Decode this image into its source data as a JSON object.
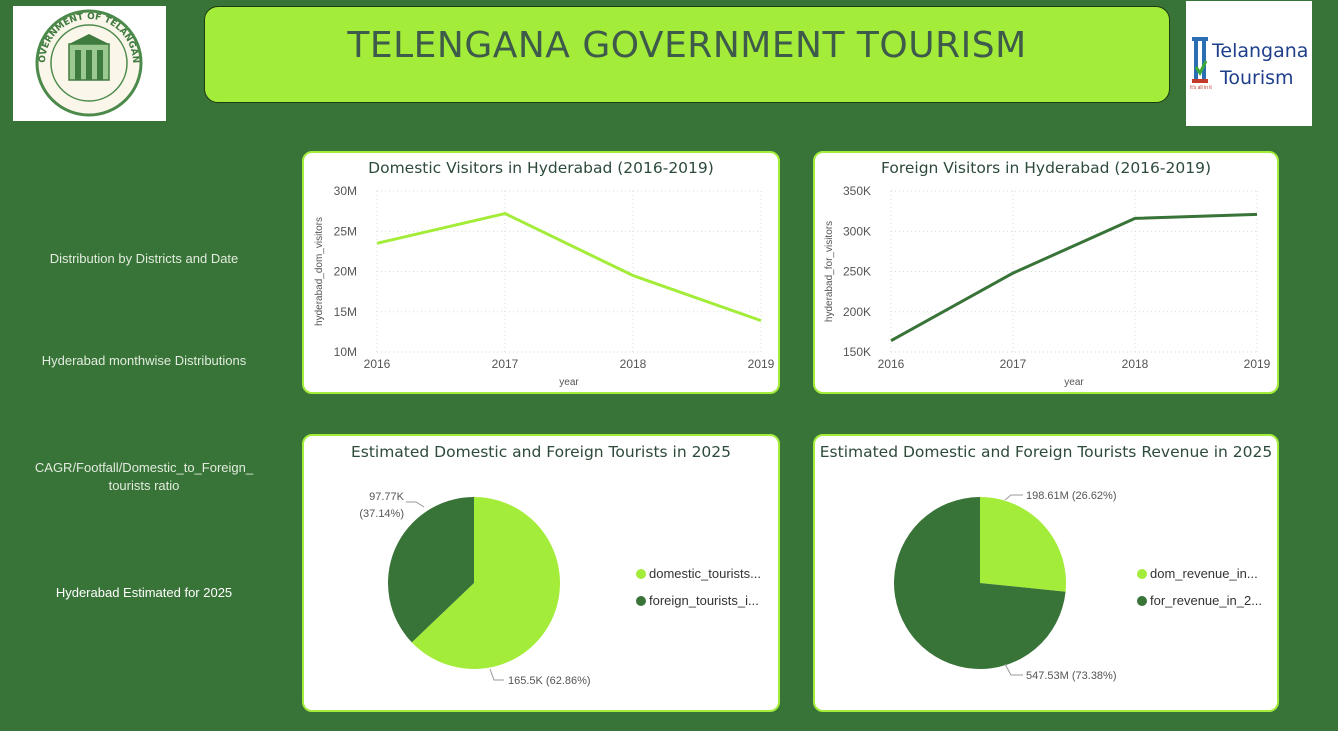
{
  "header": {
    "title": "TELENGANA GOVERNMENT TOURISM",
    "left_logo": {
      "icon": "government-of-telangana-seal",
      "text": "GOVERNMENT OF TELANGANA"
    },
    "right_logo": {
      "icon": "telangana-tourism-logo",
      "line1": "Telangana",
      "line2": "Tourism",
      "tagline": "It's all in it"
    }
  },
  "sidebar": {
    "items": [
      {
        "label": "Distribution by Districts and Date"
      },
      {
        "label": "Hyderabad monthwise Distributions"
      },
      {
        "label": "CAGR/Footfall/Domestic_to_Foreign_ tourists ratio"
      },
      {
        "label": "Hyderabad Estimated for 2025"
      }
    ]
  },
  "colors": {
    "background": "#387338",
    "light_green": "#a4ec3a",
    "dark_green": "#387338",
    "title_text": "#3d5a4a"
  },
  "chart_data": [
    {
      "type": "line",
      "title": "Domestic Visitors in Hyderabad (2016-2019)",
      "xlabel": "year",
      "ylabel": "hyderabad_dom_visitors",
      "x": [
        2016,
        2017,
        2018,
        2019
      ],
      "x_ticks": [
        "2016",
        "2017",
        "2018",
        "2019"
      ],
      "y_ticks": [
        "10M",
        "15M",
        "20M",
        "25M",
        "30M"
      ],
      "y_tick_values": [
        10000000,
        15000000,
        20000000,
        25000000,
        30000000
      ],
      "ylim": [
        10000000,
        30000000
      ],
      "series": [
        {
          "values": [
            23500000,
            27200000,
            19500000,
            13900000
          ],
          "color": "#a4ec3a"
        }
      ],
      "grid": true
    },
    {
      "type": "line",
      "title": "Foreign Visitors in Hyderabad (2016-2019)",
      "xlabel": "year",
      "ylabel": "hyderabad_for_visitors",
      "x": [
        2016,
        2017,
        2018,
        2019
      ],
      "x_ticks": [
        "2016",
        "2017",
        "2018",
        "2019"
      ],
      "y_ticks": [
        "150K",
        "200K",
        "250K",
        "300K",
        "350K"
      ],
      "y_tick_values": [
        150000,
        200000,
        250000,
        300000,
        350000
      ],
      "ylim": [
        150000,
        350000
      ],
      "series": [
        {
          "values": [
            164000,
            248000,
            316000,
            321000
          ],
          "color": "#387338"
        }
      ],
      "grid": true
    },
    {
      "type": "pie",
      "title": "Estimated Domestic and Foreign Tourists in 2025",
      "slices": [
        {
          "label": "domestic_tourists...",
          "value": 165500,
          "percent": 62.86,
          "data_label": "165.5K (62.86%)",
          "color": "#a4ec3a"
        },
        {
          "label": "foreign_tourists_i...",
          "value": 97770,
          "percent": 37.14,
          "data_label_1": "97.77K",
          "data_label_2": "(37.14%)",
          "color": "#387338"
        }
      ],
      "legend": "right"
    },
    {
      "type": "pie",
      "title": "Estimated Domestic and Foreign Tourists Revenue in 2025",
      "slices": [
        {
          "label": "dom_revenue_in...",
          "value": 198.61,
          "percent": 26.62,
          "data_label": "198.61M (26.62%)",
          "color": "#a4ec3a"
        },
        {
          "label": "for_revenue_in_2...",
          "value": 547.53,
          "percent": 73.38,
          "data_label": "547.53M (73.38%)",
          "color": "#387338"
        }
      ],
      "legend": "right"
    }
  ]
}
